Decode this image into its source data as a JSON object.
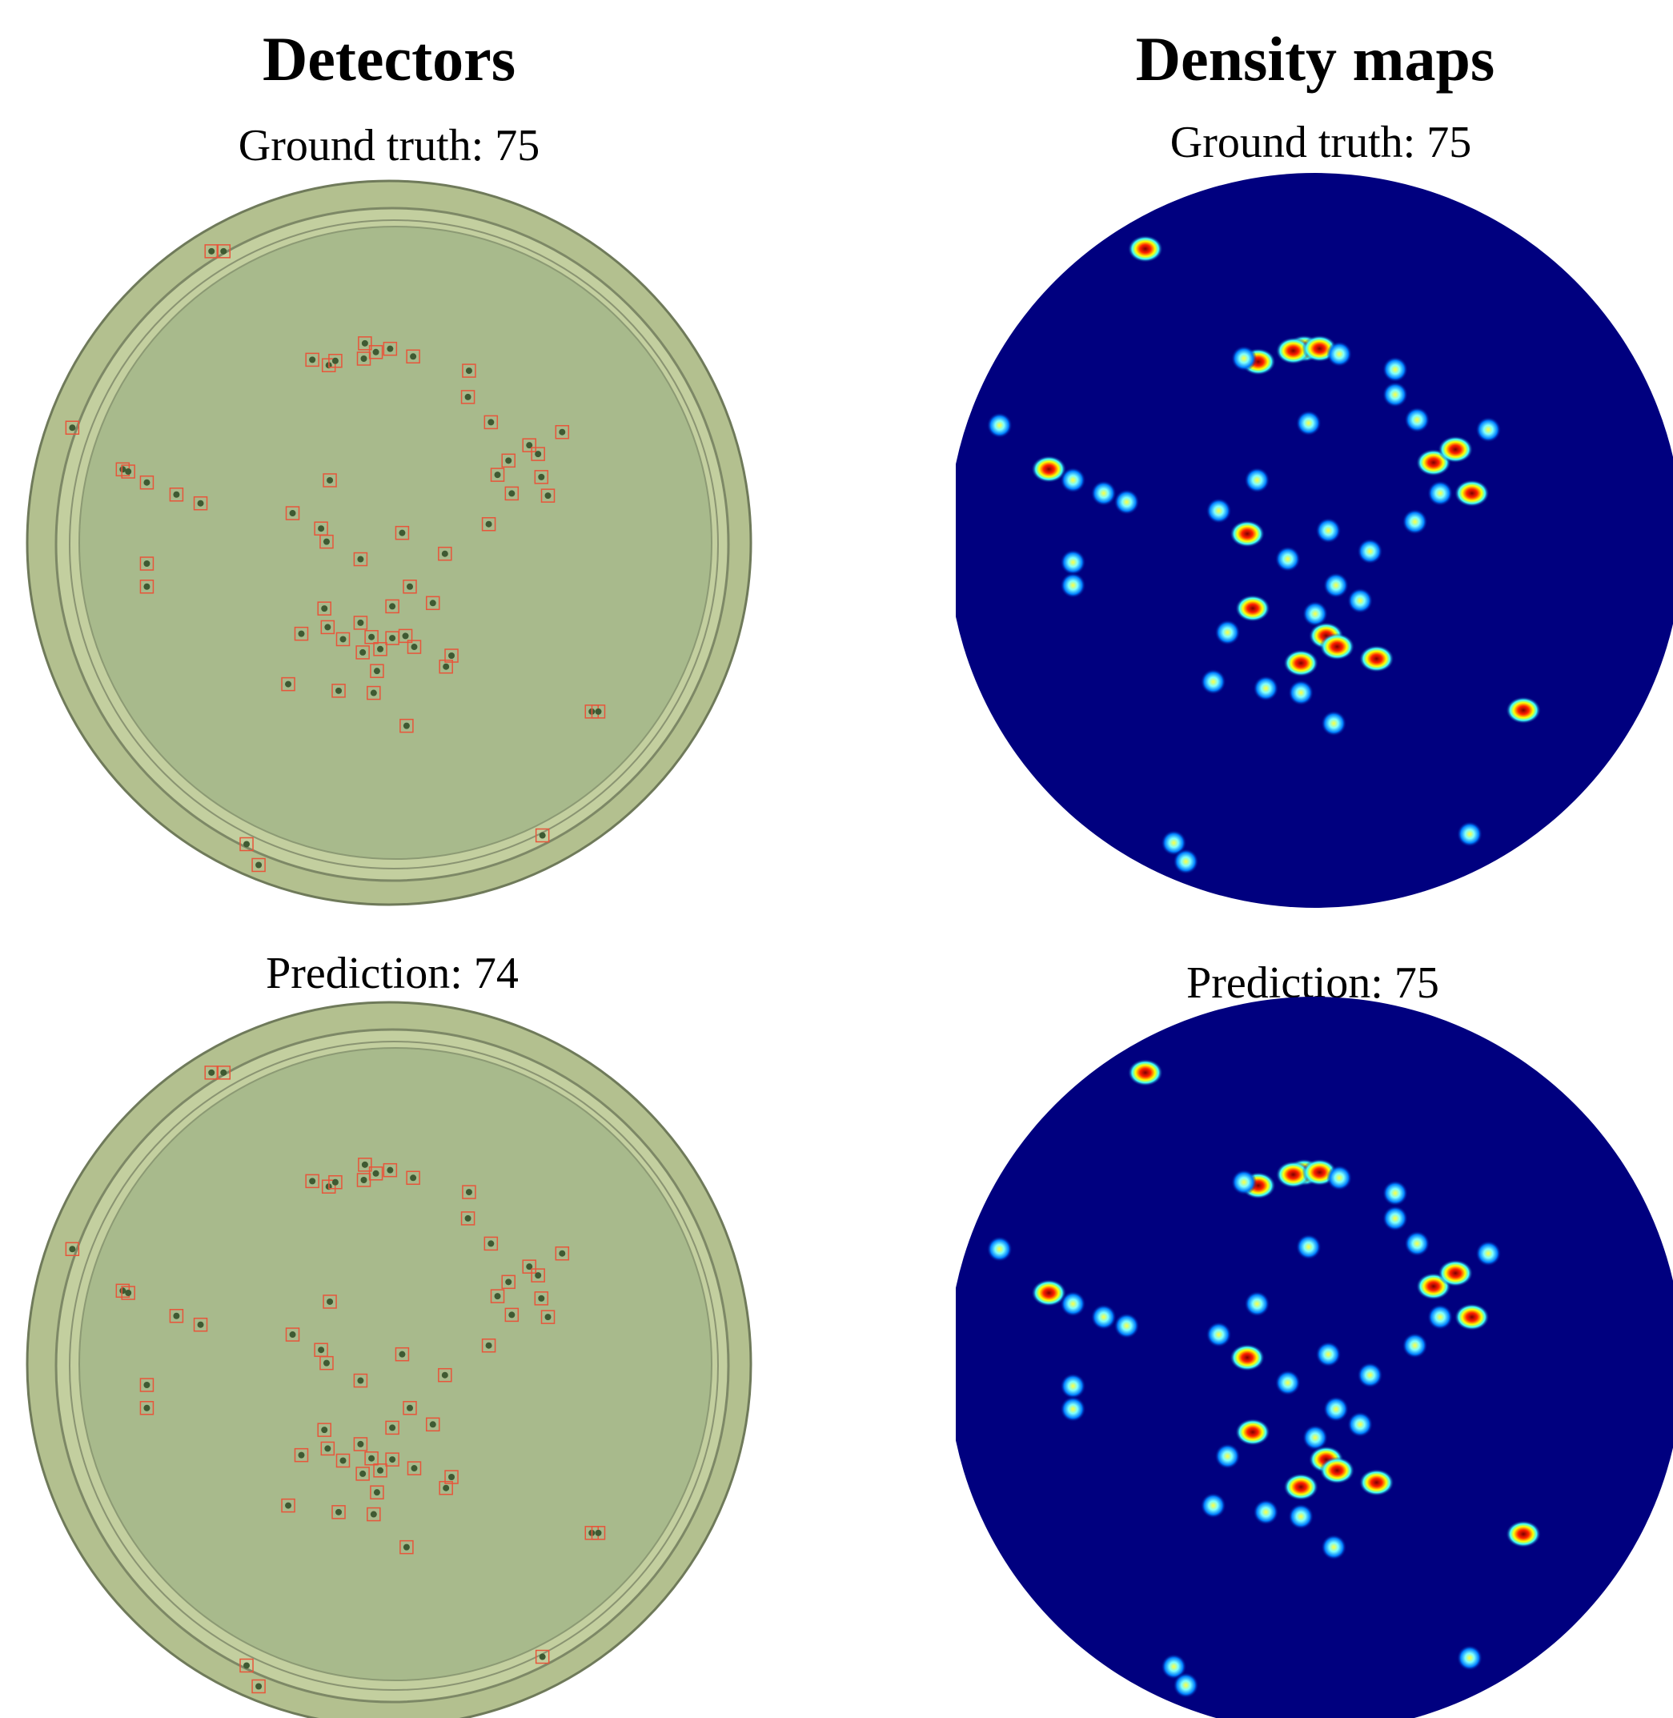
{
  "columns": [
    {
      "title": "Detectors",
      "top_label": "Ground truth: 75",
      "bottom_label": "Prediction: 74"
    },
    {
      "title": "Density maps",
      "top_label": "Ground truth: 75",
      "bottom_label": "Prediction: 75"
    }
  ]
}
